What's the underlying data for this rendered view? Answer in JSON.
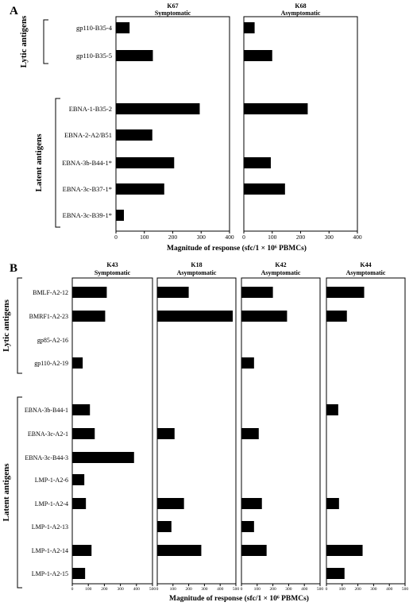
{
  "chart_data": [
    {
      "panel": "A",
      "type": "bar",
      "orientation": "horizontal",
      "categories": [
        "gp110-B35-4",
        "gp110-B35-5",
        "EBNA-1-B35-2",
        "EBNA-2-A2/B51",
        "EBNA-3b-B44-1*",
        "EBNA-3c-B37-1*",
        "EBNA-3c-B39-1*"
      ],
      "groups": [
        {
          "label": "Lytic antigens",
          "count": 2
        },
        {
          "label": "Latent antigens",
          "count": 5
        }
      ],
      "series": [
        {
          "name": "K67",
          "status": "Symptomatic",
          "values": [
            48,
            130,
            295,
            128,
            205,
            170,
            28
          ]
        },
        {
          "name": "K68",
          "status": "Asymptomatic",
          "values": [
            38,
            100,
            225,
            null,
            95,
            145,
            null
          ]
        }
      ],
      "xlim": [
        0,
        400
      ],
      "xticks": [
        "0",
        "100",
        "200",
        "300",
        "400"
      ],
      "xlabel": "Magnitude of response (sfc/1 × 10⁶ PBMCs)"
    },
    {
      "panel": "B",
      "type": "bar",
      "orientation": "horizontal",
      "categories": [
        "BMLF-A2-12",
        "BMRF1-A2-23",
        "gp85-A2-16",
        "gp110-A2-19",
        "EBNA-3b-B44-1",
        "EBNA-3c-A2-1",
        "EBNA-3c-B44-3",
        "LMP-1-A2-6",
        "LMP-1-A2-4",
        "LMP-1-A2-13",
        "LMP-1-A2-14",
        "LMP-1-A2-15"
      ],
      "groups": [
        {
          "label": "Lytic antigens",
          "count": 4
        },
        {
          "label": "Latent antigens",
          "count": 8
        }
      ],
      "series": [
        {
          "name": "K43",
          "status": "Symptomatic",
          "values": [
            215,
            205,
            null,
            65,
            110,
            140,
            385,
            75,
            85,
            null,
            120,
            80
          ]
        },
        {
          "name": "K18",
          "status": "Asymptomatic",
          "values": [
            200,
            480,
            null,
            null,
            null,
            110,
            null,
            null,
            170,
            90,
            280,
            null
          ]
        },
        {
          "name": "K42",
          "status": "Asymptomatic",
          "values": [
            200,
            290,
            null,
            80,
            null,
            110,
            null,
            null,
            130,
            80,
            160,
            null
          ]
        },
        {
          "name": "K44",
          "status": "Asymptomatic",
          "values": [
            240,
            130,
            null,
            null,
            75,
            null,
            null,
            null,
            80,
            null,
            230,
            115
          ]
        }
      ],
      "xlim": [
        0,
        500
      ],
      "xticks": [
        "0",
        "100",
        "200",
        "300",
        "400",
        "500"
      ],
      "xlabel": "Magnitude of response (sfc/1 × 10⁶ PBMCs)"
    }
  ]
}
